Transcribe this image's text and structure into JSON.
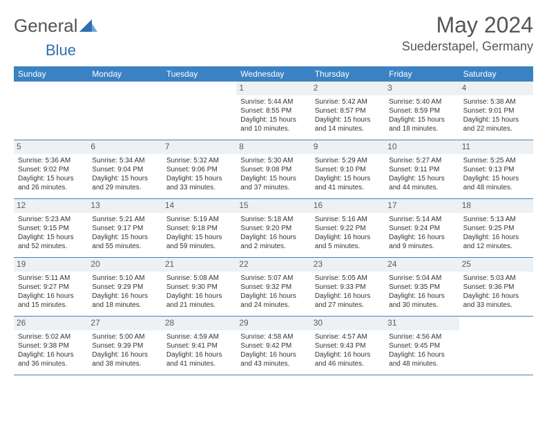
{
  "logo": {
    "general": "General",
    "blue": "Blue"
  },
  "title": "May 2024",
  "location": "Suederstapel, Germany",
  "colors": {
    "header_bg": "#3b82c4",
    "header_text": "#ffffff",
    "daynum_bg": "#eef1f3",
    "text": "#333333",
    "title_color": "#555555",
    "border": "#3b82c4"
  },
  "day_names": [
    "Sunday",
    "Monday",
    "Tuesday",
    "Wednesday",
    "Thursday",
    "Friday",
    "Saturday"
  ],
  "weeks": [
    [
      {
        "n": "",
        "empty": true
      },
      {
        "n": "",
        "empty": true
      },
      {
        "n": "",
        "empty": true
      },
      {
        "n": "1",
        "sr": "Sunrise: 5:44 AM",
        "ss": "Sunset: 8:55 PM",
        "d1": "Daylight: 15 hours",
        "d2": "and 10 minutes."
      },
      {
        "n": "2",
        "sr": "Sunrise: 5:42 AM",
        "ss": "Sunset: 8:57 PM",
        "d1": "Daylight: 15 hours",
        "d2": "and 14 minutes."
      },
      {
        "n": "3",
        "sr": "Sunrise: 5:40 AM",
        "ss": "Sunset: 8:59 PM",
        "d1": "Daylight: 15 hours",
        "d2": "and 18 minutes."
      },
      {
        "n": "4",
        "sr": "Sunrise: 5:38 AM",
        "ss": "Sunset: 9:01 PM",
        "d1": "Daylight: 15 hours",
        "d2": "and 22 minutes."
      }
    ],
    [
      {
        "n": "5",
        "sr": "Sunrise: 5:36 AM",
        "ss": "Sunset: 9:02 PM",
        "d1": "Daylight: 15 hours",
        "d2": "and 26 minutes."
      },
      {
        "n": "6",
        "sr": "Sunrise: 5:34 AM",
        "ss": "Sunset: 9:04 PM",
        "d1": "Daylight: 15 hours",
        "d2": "and 29 minutes."
      },
      {
        "n": "7",
        "sr": "Sunrise: 5:32 AM",
        "ss": "Sunset: 9:06 PM",
        "d1": "Daylight: 15 hours",
        "d2": "and 33 minutes."
      },
      {
        "n": "8",
        "sr": "Sunrise: 5:30 AM",
        "ss": "Sunset: 9:08 PM",
        "d1": "Daylight: 15 hours",
        "d2": "and 37 minutes."
      },
      {
        "n": "9",
        "sr": "Sunrise: 5:29 AM",
        "ss": "Sunset: 9:10 PM",
        "d1": "Daylight: 15 hours",
        "d2": "and 41 minutes."
      },
      {
        "n": "10",
        "sr": "Sunrise: 5:27 AM",
        "ss": "Sunset: 9:11 PM",
        "d1": "Daylight: 15 hours",
        "d2": "and 44 minutes."
      },
      {
        "n": "11",
        "sr": "Sunrise: 5:25 AM",
        "ss": "Sunset: 9:13 PM",
        "d1": "Daylight: 15 hours",
        "d2": "and 48 minutes."
      }
    ],
    [
      {
        "n": "12",
        "sr": "Sunrise: 5:23 AM",
        "ss": "Sunset: 9:15 PM",
        "d1": "Daylight: 15 hours",
        "d2": "and 52 minutes."
      },
      {
        "n": "13",
        "sr": "Sunrise: 5:21 AM",
        "ss": "Sunset: 9:17 PM",
        "d1": "Daylight: 15 hours",
        "d2": "and 55 minutes."
      },
      {
        "n": "14",
        "sr": "Sunrise: 5:19 AM",
        "ss": "Sunset: 9:18 PM",
        "d1": "Daylight: 15 hours",
        "d2": "and 59 minutes."
      },
      {
        "n": "15",
        "sr": "Sunrise: 5:18 AM",
        "ss": "Sunset: 9:20 PM",
        "d1": "Daylight: 16 hours",
        "d2": "and 2 minutes."
      },
      {
        "n": "16",
        "sr": "Sunrise: 5:16 AM",
        "ss": "Sunset: 9:22 PM",
        "d1": "Daylight: 16 hours",
        "d2": "and 5 minutes."
      },
      {
        "n": "17",
        "sr": "Sunrise: 5:14 AM",
        "ss": "Sunset: 9:24 PM",
        "d1": "Daylight: 16 hours",
        "d2": "and 9 minutes."
      },
      {
        "n": "18",
        "sr": "Sunrise: 5:13 AM",
        "ss": "Sunset: 9:25 PM",
        "d1": "Daylight: 16 hours",
        "d2": "and 12 minutes."
      }
    ],
    [
      {
        "n": "19",
        "sr": "Sunrise: 5:11 AM",
        "ss": "Sunset: 9:27 PM",
        "d1": "Daylight: 16 hours",
        "d2": "and 15 minutes."
      },
      {
        "n": "20",
        "sr": "Sunrise: 5:10 AM",
        "ss": "Sunset: 9:29 PM",
        "d1": "Daylight: 16 hours",
        "d2": "and 18 minutes."
      },
      {
        "n": "21",
        "sr": "Sunrise: 5:08 AM",
        "ss": "Sunset: 9:30 PM",
        "d1": "Daylight: 16 hours",
        "d2": "and 21 minutes."
      },
      {
        "n": "22",
        "sr": "Sunrise: 5:07 AM",
        "ss": "Sunset: 9:32 PM",
        "d1": "Daylight: 16 hours",
        "d2": "and 24 minutes."
      },
      {
        "n": "23",
        "sr": "Sunrise: 5:05 AM",
        "ss": "Sunset: 9:33 PM",
        "d1": "Daylight: 16 hours",
        "d2": "and 27 minutes."
      },
      {
        "n": "24",
        "sr": "Sunrise: 5:04 AM",
        "ss": "Sunset: 9:35 PM",
        "d1": "Daylight: 16 hours",
        "d2": "and 30 minutes."
      },
      {
        "n": "25",
        "sr": "Sunrise: 5:03 AM",
        "ss": "Sunset: 9:36 PM",
        "d1": "Daylight: 16 hours",
        "d2": "and 33 minutes."
      }
    ],
    [
      {
        "n": "26",
        "sr": "Sunrise: 5:02 AM",
        "ss": "Sunset: 9:38 PM",
        "d1": "Daylight: 16 hours",
        "d2": "and 36 minutes."
      },
      {
        "n": "27",
        "sr": "Sunrise: 5:00 AM",
        "ss": "Sunset: 9:39 PM",
        "d1": "Daylight: 16 hours",
        "d2": "and 38 minutes."
      },
      {
        "n": "28",
        "sr": "Sunrise: 4:59 AM",
        "ss": "Sunset: 9:41 PM",
        "d1": "Daylight: 16 hours",
        "d2": "and 41 minutes."
      },
      {
        "n": "29",
        "sr": "Sunrise: 4:58 AM",
        "ss": "Sunset: 9:42 PM",
        "d1": "Daylight: 16 hours",
        "d2": "and 43 minutes."
      },
      {
        "n": "30",
        "sr": "Sunrise: 4:57 AM",
        "ss": "Sunset: 9:43 PM",
        "d1": "Daylight: 16 hours",
        "d2": "and 46 minutes."
      },
      {
        "n": "31",
        "sr": "Sunrise: 4:56 AM",
        "ss": "Sunset: 9:45 PM",
        "d1": "Daylight: 16 hours",
        "d2": "and 48 minutes."
      },
      {
        "n": "",
        "empty": true
      }
    ]
  ]
}
